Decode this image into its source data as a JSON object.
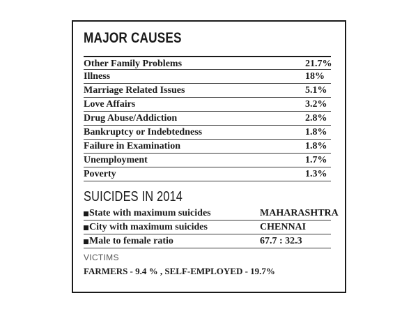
{
  "major_causes": {
    "title": "MAJOR CAUSES",
    "rows": [
      {
        "label": "Other Family Problems",
        "value": "21.7%"
      },
      {
        "label": "Illness",
        "value": "18%"
      },
      {
        "label": "Marriage Related Issues",
        "value": "5.1%"
      },
      {
        "label": "Love Affairs",
        "value": "3.2%"
      },
      {
        "label": "Drug Abuse/Addiction",
        "value": "2.8%"
      },
      {
        "label": "Bankruptcy or Indebtedness",
        "value": "1.8%"
      },
      {
        "label": "Failure in Examination",
        "value": "1.8%"
      },
      {
        "label": "Unemployment",
        "value": "1.7%"
      },
      {
        "label": "Poverty",
        "value": "1.3%"
      }
    ]
  },
  "suicides_2014": {
    "title": "SUICIDES IN 2014",
    "rows": [
      {
        "label": "State with maximum suicides",
        "value": "MAHARASHTRA"
      },
      {
        "label": "City with maximum suicides",
        "value": "CHENNAI"
      },
      {
        "label": "Male to female ratio",
        "value": "67.7 : 32.3"
      }
    ]
  },
  "victims": {
    "title": "VICTIMS",
    "line": "FARMERS - 9.4 % ,   SELF-EMPLOYED - 19.7%"
  }
}
